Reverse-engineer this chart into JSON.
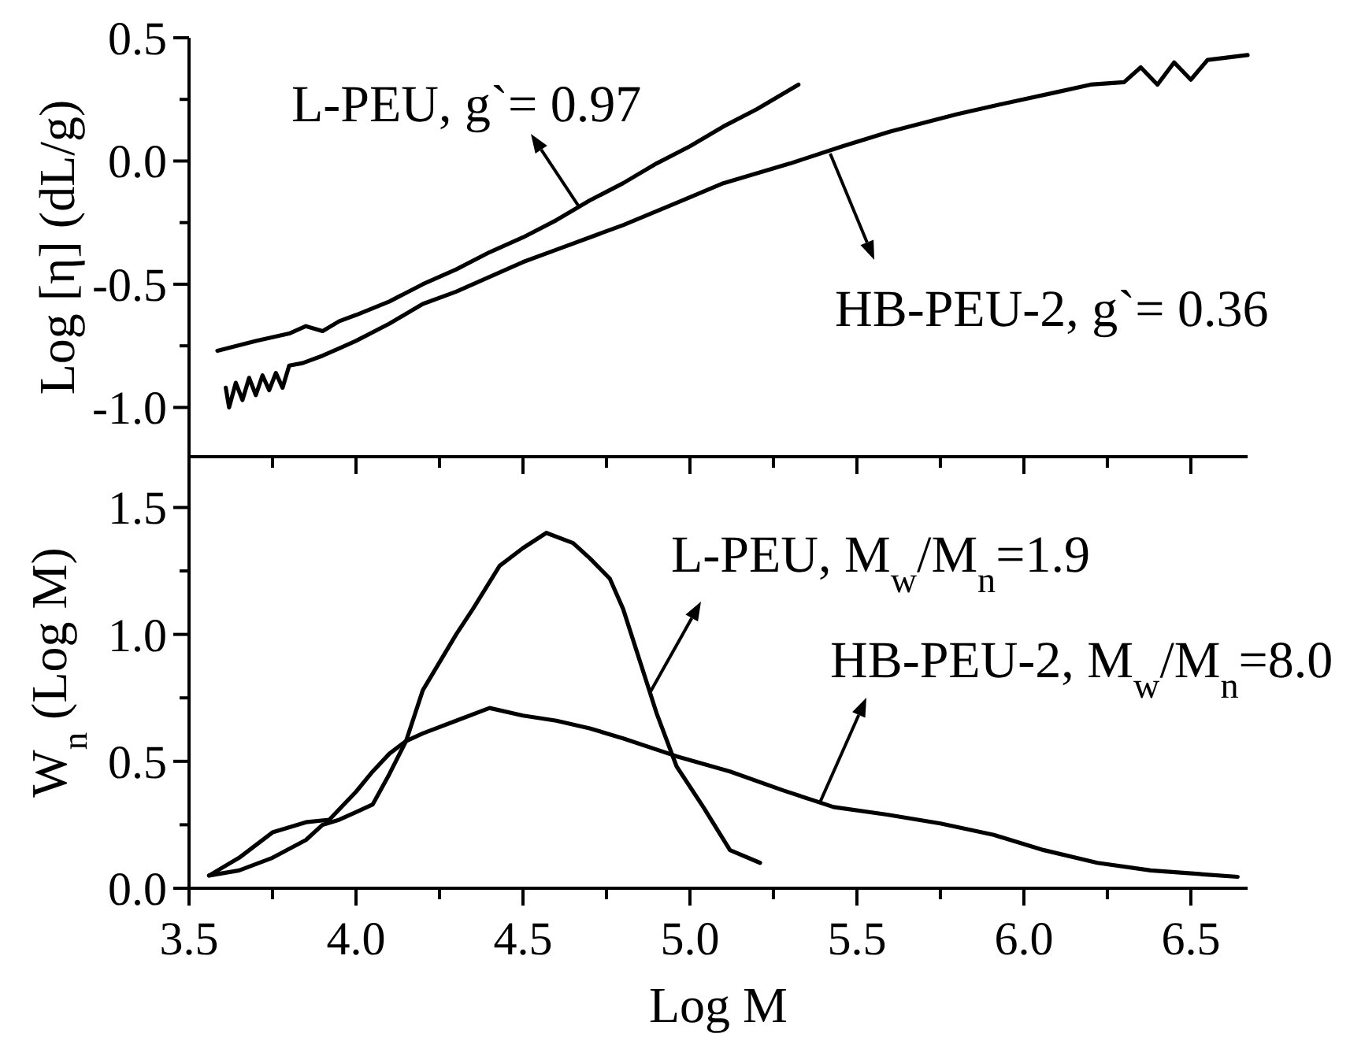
{
  "chart_data": [
    {
      "type": "line",
      "ylabel": "Log [η] (dL/g)",
      "xlim": [
        3.5,
        6.67
      ],
      "ylim": [
        -1.2,
        0.5
      ],
      "xticks": [
        3.5,
        {
          "value": 3.75,
          "label": null
        },
        4.0,
        {
          "value": 4.25,
          "label": null
        },
        4.5,
        {
          "value": 4.75,
          "label": null
        },
        5.0,
        {
          "value": 5.25,
          "label": null
        },
        5.5,
        {
          "value": 5.75,
          "label": null
        },
        6.0,
        {
          "value": 6.25,
          "label": null
        },
        6.5
      ],
      "yticks": [
        {
          "value": -1.0,
          "label": "-1.0"
        },
        {
          "value": -0.75,
          "label": null
        },
        {
          "value": -0.5,
          "label": "-0.5"
        },
        {
          "value": -0.25,
          "label": null
        },
        {
          "value": 0.0,
          "label": "0.0"
        },
        {
          "value": 0.25,
          "label": null
        },
        {
          "value": 0.5,
          "label": "0.5"
        }
      ],
      "tick_labels": "y",
      "grid": false,
      "line_style": "solid",
      "marker": "none",
      "annotations": [
        {
          "text": "L-PEU, g`= 0.97",
          "x": 4.67,
          "y": -0.19
        },
        {
          "text": "HB-PEU-2, g`= 0.36",
          "x": 5.42,
          "y": 0.03
        }
      ],
      "series": [
        {
          "color": "#000000",
          "x": [
            3.585,
            3.7,
            3.8,
            3.85,
            3.9,
            3.95,
            4.0,
            4.1,
            4.2,
            4.3,
            4.4,
            4.5,
            4.6,
            4.7,
            4.8,
            4.9,
            5.0,
            5.1,
            5.2,
            5.325
          ],
          "values": [
            -0.77,
            -0.73,
            -0.7,
            -0.67,
            -0.69,
            -0.65,
            -0.625,
            -0.57,
            -0.5,
            -0.44,
            -0.37,
            -0.31,
            -0.24,
            -0.16,
            -0.09,
            -0.01,
            0.06,
            0.14,
            0.21,
            0.31
          ]
        },
        {
          "color": "#000000",
          "x": [
            3.61,
            3.62,
            3.64,
            3.66,
            3.68,
            3.7,
            3.72,
            3.74,
            3.76,
            3.78,
            3.8,
            3.84,
            3.9,
            3.95,
            4.0,
            4.1,
            4.2,
            4.3,
            4.4,
            4.5,
            4.6,
            4.7,
            4.8,
            4.96,
            5.1,
            5.3,
            5.457,
            5.6,
            5.8,
            5.93,
            6.1,
            6.2,
            6.3,
            6.35,
            6.4,
            6.45,
            6.5,
            6.55,
            6.67
          ],
          "values": [
            -0.92,
            -1.0,
            -0.9,
            -0.97,
            -0.88,
            -0.95,
            -0.87,
            -0.93,
            -0.86,
            -0.92,
            -0.83,
            -0.82,
            -0.79,
            -0.76,
            -0.73,
            -0.66,
            -0.58,
            -0.53,
            -0.47,
            -0.41,
            -0.36,
            -0.31,
            -0.26,
            -0.17,
            -0.09,
            -0.01,
            0.06,
            0.12,
            0.19,
            0.23,
            0.28,
            0.31,
            0.32,
            0.38,
            0.31,
            0.4,
            0.33,
            0.41,
            0.43
          ]
        }
      ]
    },
    {
      "type": "line",
      "xlabel": "Log M",
      "ylabel": "W$_{n}$ (Log M)",
      "xlim": [
        3.5,
        6.67
      ],
      "ylim": [
        0,
        1.7
      ],
      "xticks": [
        3.5,
        {
          "value": 3.75,
          "label": null
        },
        {
          "value": 4.0,
          "label": "4.0"
        },
        {
          "value": 4.25,
          "label": null
        },
        4.5,
        {
          "value": 4.75,
          "label": null
        },
        {
          "value": 5.0,
          "label": "5.0"
        },
        {
          "value": 5.25,
          "label": null
        },
        5.5,
        {
          "value": 5.75,
          "label": null
        },
        {
          "value": 6.0,
          "label": "6.0"
        },
        {
          "value": 6.25,
          "label": null
        },
        6.5
      ],
      "yticks": [
        {
          "value": 0,
          "label": "0.0"
        },
        {
          "value": 0.25,
          "label": null
        },
        {
          "value": 0.5,
          "label": "0.5"
        },
        {
          "value": 0.75,
          "label": null
        },
        {
          "value": 1.0,
          "label": "1.0"
        },
        {
          "value": 1.25,
          "label": null
        },
        {
          "value": 1.5,
          "label": "1.5"
        }
      ],
      "grid": false,
      "line_style": "solid",
      "marker": "none",
      "annotations": [
        {
          "text": "L-PEU, M$_{w}$/M$_{n}$=1.9",
          "x": 4.88,
          "y": 0.77
        },
        {
          "text": "HB-PEU-2, M$_{w}$/M$_{n}$=8.0",
          "x": 5.39,
          "y": 0.34
        }
      ],
      "series": [
        {
          "color": "#000000",
          "x": [
            3.56,
            3.65,
            3.75,
            3.85,
            3.9,
            3.95,
            4.0,
            4.05,
            4.1,
            4.15,
            4.2,
            4.3,
            4.35,
            4.43,
            4.5,
            4.57,
            4.65,
            4.7,
            4.76,
            4.8,
            4.9,
            4.96,
            5.04,
            5.12,
            5.21
          ],
          "values": [
            0.05,
            0.07,
            0.12,
            0.19,
            0.25,
            0.27,
            0.3,
            0.33,
            0.45,
            0.58,
            0.78,
            1.0,
            1.1,
            1.27,
            1.34,
            1.4,
            1.36,
            1.3,
            1.22,
            1.1,
            0.69,
            0.48,
            0.32,
            0.15,
            0.1
          ]
        },
        {
          "color": "#000000",
          "x": [
            3.56,
            3.65,
            3.75,
            3.85,
            3.92,
            4.0,
            4.05,
            4.1,
            4.15,
            4.2,
            4.3,
            4.4,
            4.5,
            4.6,
            4.7,
            4.8,
            4.96,
            5.12,
            5.28,
            5.43,
            5.59,
            5.75,
            5.91,
            6.06,
            6.22,
            6.38,
            6.64
          ],
          "values": [
            0.05,
            0.12,
            0.22,
            0.26,
            0.27,
            0.38,
            0.46,
            0.53,
            0.58,
            0.61,
            0.66,
            0.71,
            0.68,
            0.66,
            0.63,
            0.59,
            0.52,
            0.46,
            0.385,
            0.32,
            0.29,
            0.255,
            0.21,
            0.15,
            0.1,
            0.07,
            0.045
          ]
        }
      ]
    }
  ]
}
